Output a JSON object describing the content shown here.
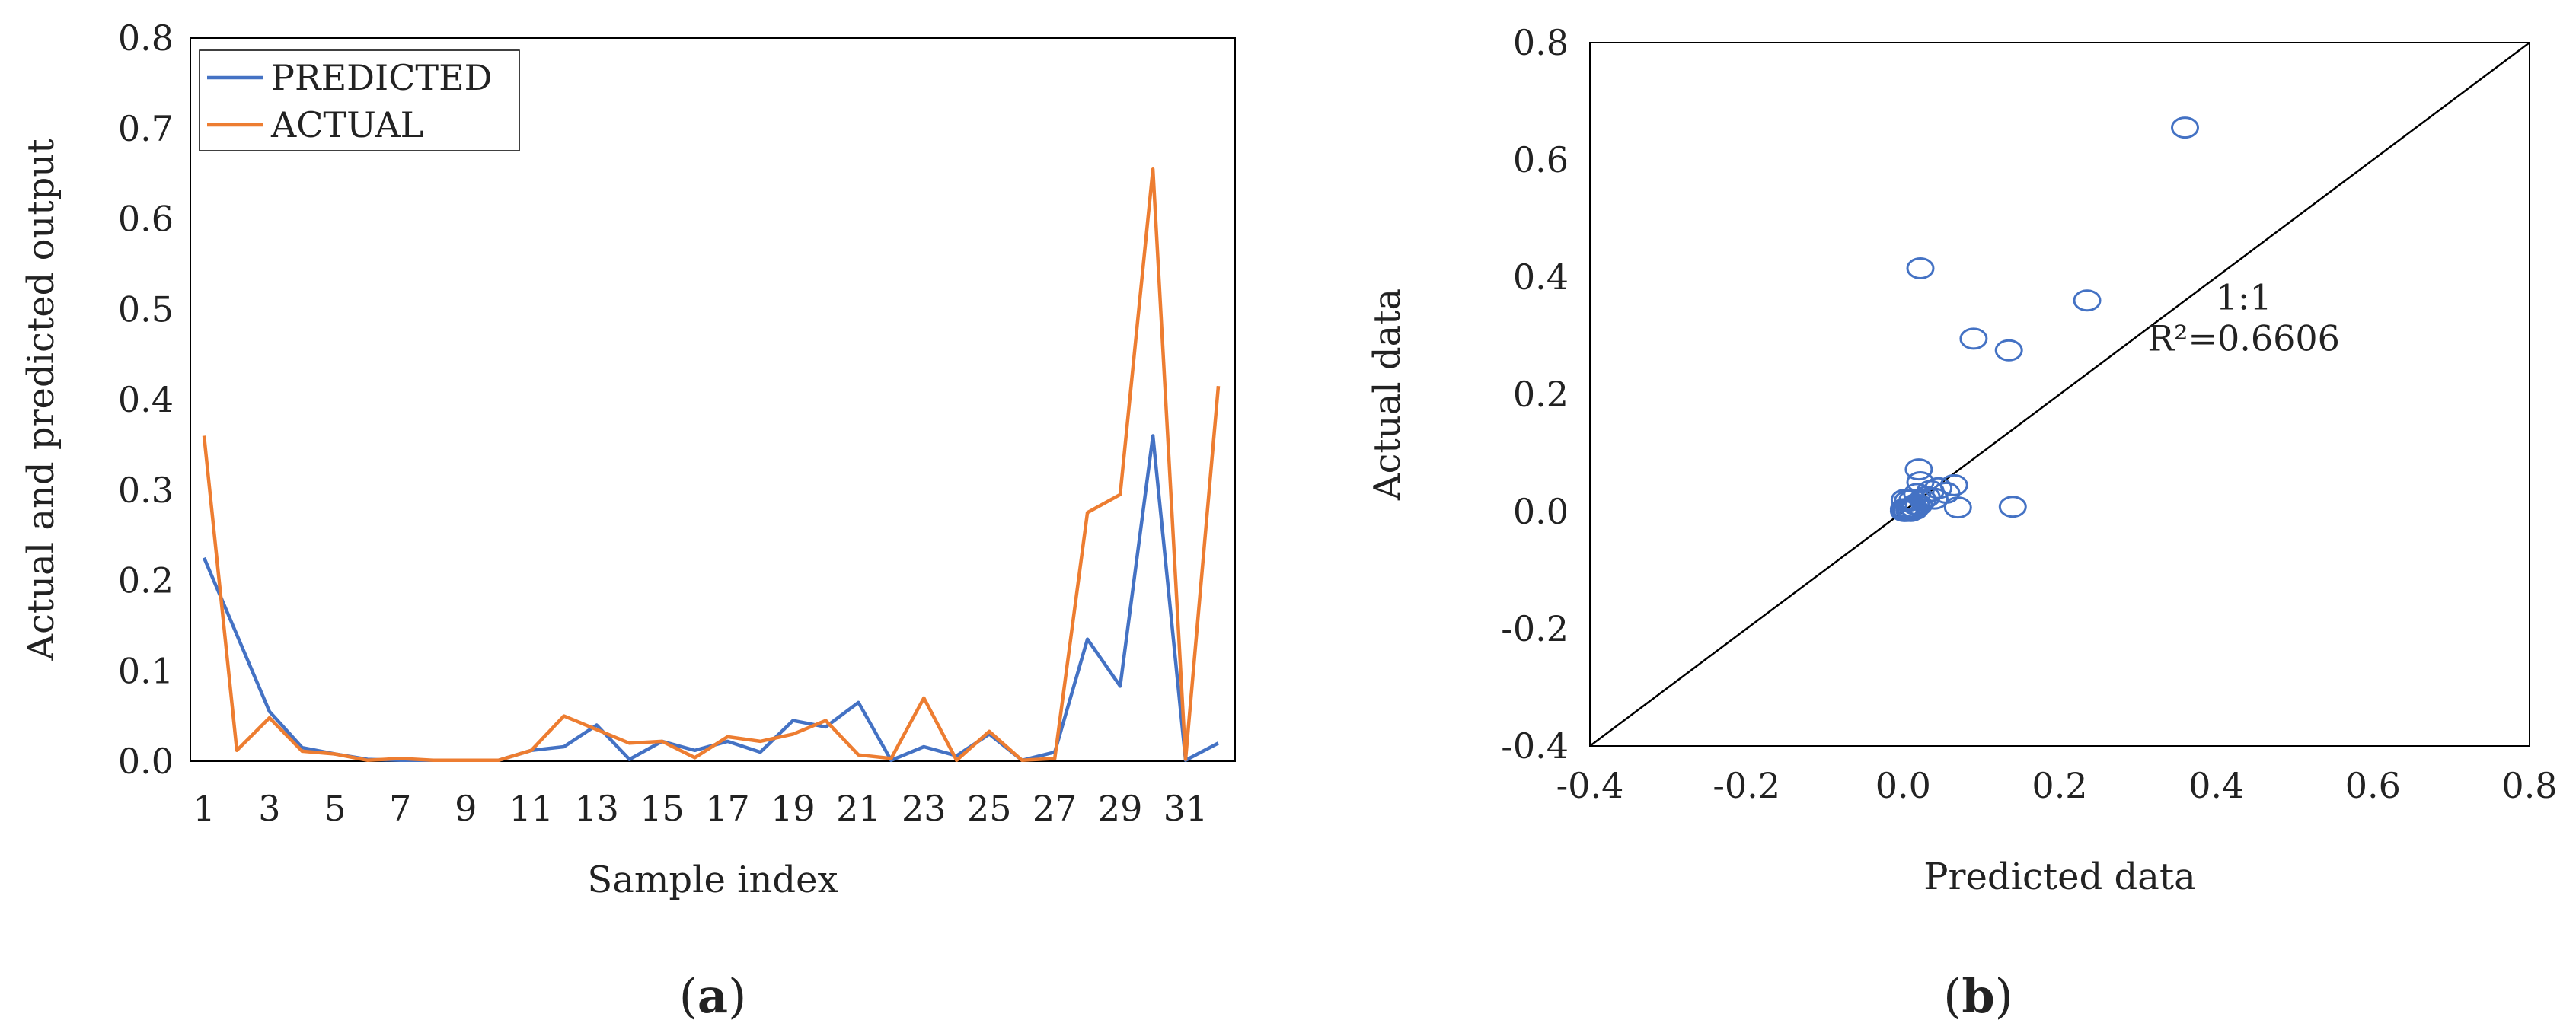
{
  "chart_data": [
    {
      "type": "line",
      "panel_label": "(a)",
      "panel_letter": "a",
      "xlabel": "Sample index",
      "ylabel": "Actual and predicted output",
      "x": [
        1,
        2,
        3,
        4,
        5,
        6,
        7,
        8,
        9,
        10,
        11,
        12,
        13,
        14,
        15,
        16,
        17,
        18,
        19,
        20,
        21,
        22,
        23,
        24,
        25,
        26,
        27,
        28,
        29,
        30,
        31,
        32
      ],
      "x_ticks": [
        "1",
        "3",
        "5",
        "7",
        "9",
        "11",
        "13",
        "15",
        "17",
        "19",
        "21",
        "23",
        "25",
        "27",
        "29",
        "31"
      ],
      "y_ticks": [
        "0.0",
        "0.1",
        "0.2",
        "0.3",
        "0.4",
        "0.5",
        "0.6",
        "0.7",
        "0.8"
      ],
      "ylim": [
        0,
        0.8
      ],
      "legend_position": "top-left",
      "grid": false,
      "series": [
        {
          "name": "PREDICTED",
          "color": "#4472c4",
          "values": [
            0.225,
            0.14,
            0.055,
            0.015,
            0.008,
            0.002,
            0.001,
            0.001,
            0.001,
            0.001,
            0.012,
            0.016,
            0.04,
            0.002,
            0.022,
            0.012,
            0.022,
            0.01,
            0.045,
            0.038,
            0.065,
            0.001,
            0.016,
            0.006,
            0.03,
            0.001,
            0.01,
            0.135,
            0.083,
            0.36,
            0.001,
            0.02
          ]
        },
        {
          "name": "ACTUAL",
          "color": "#ed7d31",
          "values": [
            0.36,
            0.012,
            0.048,
            0.011,
            0.008,
            0.001,
            0.003,
            0.001,
            0.001,
            0.001,
            0.012,
            0.05,
            0.035,
            0.02,
            0.022,
            0.004,
            0.027,
            0.022,
            0.03,
            0.045,
            0.007,
            0.003,
            0.07,
            0.001,
            0.033,
            0.001,
            0.003,
            0.275,
            0.295,
            0.655,
            0.002,
            0.415
          ]
        }
      ]
    },
    {
      "type": "scatter",
      "panel_label": "(b)",
      "panel_letter": "b",
      "xlabel": "Predicted data",
      "ylabel": "Actual data",
      "xlim": [
        -0.4,
        0.8
      ],
      "ylim": [
        -0.4,
        0.8
      ],
      "x_ticks": [
        "-0.4",
        "-0.2",
        "0.0",
        "0.2",
        "0.4",
        "0.6",
        "0.8"
      ],
      "y_ticks": [
        "-0.4",
        "-0.2",
        "0.0",
        "0.2",
        "0.4",
        "0.6",
        "0.8"
      ],
      "marker_color": "#4472c4",
      "reference_line": {
        "label": "1:1",
        "from": [
          -0.4,
          -0.4
        ],
        "to": [
          0.8,
          0.8
        ]
      },
      "r_squared_label": "R²=0.6606",
      "grid": false,
      "points": [
        [
          0.36,
          0.655
        ],
        [
          0.022,
          0.415
        ],
        [
          0.235,
          0.36
        ],
        [
          0.09,
          0.295
        ],
        [
          0.135,
          0.275
        ],
        [
          0.14,
          0.008
        ],
        [
          0.07,
          0.007
        ],
        [
          0.02,
          0.072
        ],
        [
          0.065,
          0.045
        ],
        [
          0.045,
          0.04
        ],
        [
          0.035,
          0.035
        ],
        [
          0.055,
          0.032
        ],
        [
          0.022,
          0.05
        ],
        [
          0.03,
          0.025
        ],
        [
          0.025,
          0.02
        ],
        [
          0.016,
          0.012
        ],
        [
          0.012,
          0.008
        ],
        [
          0.01,
          0.005
        ],
        [
          0.008,
          0.002
        ],
        [
          0.005,
          0.001
        ],
        [
          0.003,
          0.003
        ],
        [
          0.002,
          0.001
        ],
        [
          0.001,
          0.001
        ],
        [
          0.006,
          0.018
        ],
        [
          0.04,
          0.022
        ],
        [
          0.018,
          0.03
        ],
        [
          0.012,
          0.02
        ],
        [
          0.002,
          0.02
        ],
        [
          0.02,
          0.011
        ],
        [
          0.01,
          0.001
        ],
        [
          0.001,
          0.004
        ],
        [
          0.015,
          0.004
        ]
      ]
    }
  ]
}
